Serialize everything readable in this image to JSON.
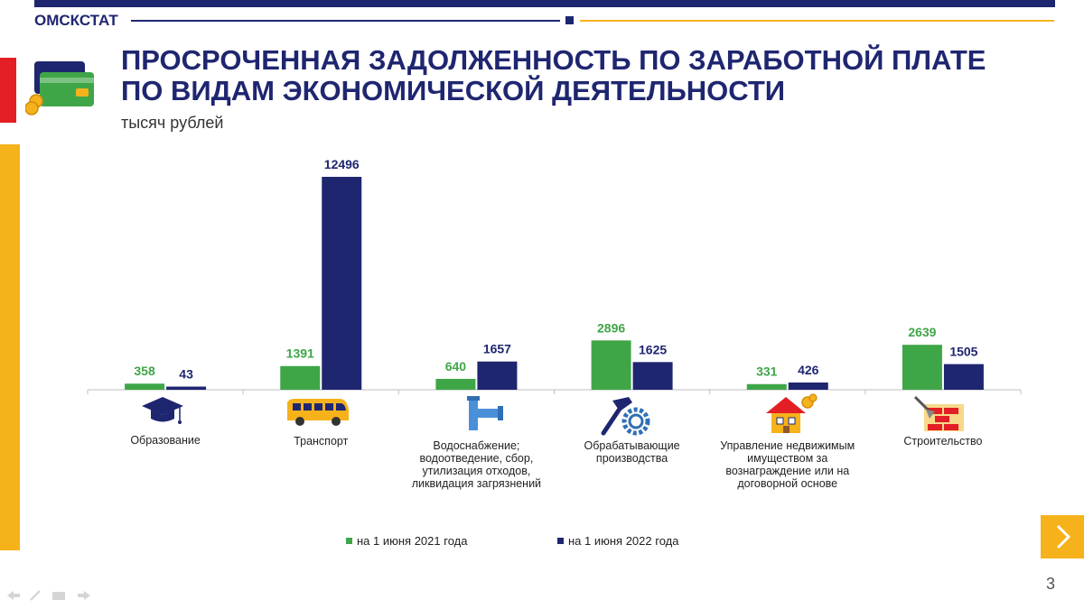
{
  "header": {
    "brand": "ОМСКСТАТ",
    "title_line1": "ПРОСРОЧЕННАЯ ЗАДОЛЖЕННОСТЬ ПО ЗАРАБОТНОЙ ПЛАТЕ",
    "title_line2": "ПО ВИДАМ ЭКОНОМИЧЕСКОЙ ДЕЯТЕЛЬНОСТИ",
    "unit": "тысяч рублей",
    "icon": "credit-card-coins-icon"
  },
  "colors": {
    "navy": "#1f2670",
    "green": "#3fa648",
    "yellow": "#f6b21b",
    "red": "#e31e24"
  },
  "chart_data": {
    "type": "bar",
    "title": "ПРОСРОЧЕННАЯ ЗАДОЛЖЕННОСТЬ ПО ЗАРАБОТНОЙ ПЛАТЕ ПО ВИДАМ ЭКОНОМИЧЕСКОЙ ДЕЯТЕЛЬНОСТИ",
    "ylabel": "тысяч рублей",
    "categories": [
      "Образование",
      "Транспорт",
      "Водоснабжение; водоотведение, сбор, утилизация отходов, ликвидация загрязнений",
      "Обрабатывающие производства",
      "Управление недвижимым имуществом за вознаграждение или на договорной основе",
      "Строительство"
    ],
    "category_icons": [
      "graduation-cap-icon",
      "bus-icon",
      "water-pipe-icon",
      "hammer-gear-icon",
      "house-coins-icon",
      "brick-wall-icon"
    ],
    "series": [
      {
        "name": "на 1 июня 2021 года",
        "color": "#3fa648",
        "values": [
          358,
          1391,
          640,
          2896,
          331,
          2639
        ]
      },
      {
        "name": "на 1 июня 2022 года",
        "color": "#1f2670",
        "values": [
          43,
          12496,
          1657,
          1625,
          426,
          1505
        ]
      }
    ],
    "ylim": [
      0,
      12496
    ],
    "grid": false,
    "legend": "bottom"
  },
  "footer": {
    "page_number": "3"
  }
}
